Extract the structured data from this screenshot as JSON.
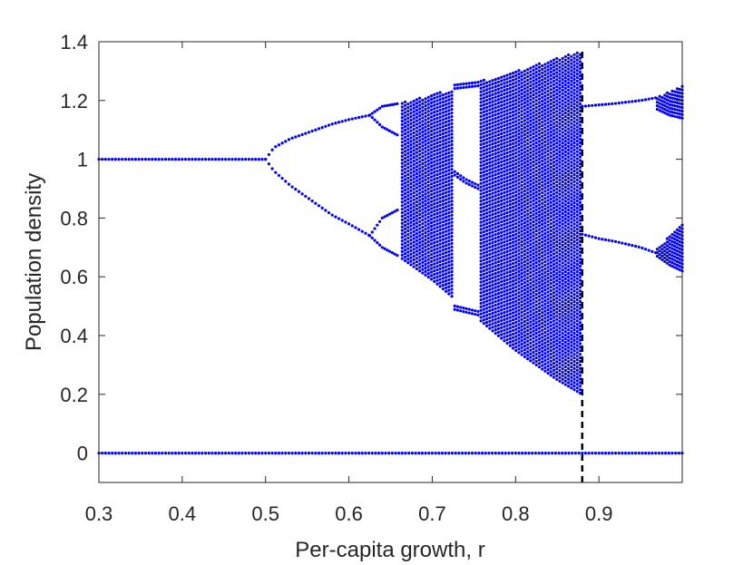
{
  "chart_data": {
    "type": "scatter",
    "title": "",
    "xlabel": "Per-capita growth, r",
    "ylabel": "Population density",
    "xlim": [
      0.3,
      1.0
    ],
    "ylim": [
      -0.1,
      1.4
    ],
    "xticks": [
      0.3,
      0.4,
      0.5,
      0.6,
      0.7,
      0.8,
      0.9
    ],
    "xtick_labels": [
      "0.3",
      "0.4",
      "0.5",
      "0.6",
      "0.7",
      "0.8",
      "0.9"
    ],
    "yticks": [
      0,
      0.2,
      0.4,
      0.6,
      0.8,
      1.0,
      1.2,
      1.4
    ],
    "ytick_labels": [
      "0",
      "0.2",
      "0.4",
      "0.6",
      "0.8",
      "1",
      "1.2",
      "1.4"
    ],
    "grid": false,
    "marker_color": "#0000ff",
    "reference_line": {
      "x": 0.88,
      "y_range": [
        -0.1,
        1.37
      ],
      "style": "dashed",
      "color": "#000000"
    },
    "series": [
      {
        "role": "extinction-equilibrium",
        "points": [
          [
            0.3,
            0
          ],
          [
            0.35,
            0
          ],
          [
            0.4,
            0
          ],
          [
            0.45,
            0
          ],
          [
            0.5,
            0
          ],
          [
            0.55,
            0
          ],
          [
            0.6,
            0
          ],
          [
            0.65,
            0
          ],
          [
            0.7,
            0
          ],
          [
            0.75,
            0
          ],
          [
            0.8,
            0
          ],
          [
            0.85,
            0
          ],
          [
            0.88,
            0
          ],
          [
            0.9,
            0
          ],
          [
            0.95,
            0
          ],
          [
            1.0,
            0
          ]
        ]
      },
      {
        "role": "stable-fixed-point",
        "points": [
          [
            0.3,
            1.0
          ],
          [
            0.35,
            1.0
          ],
          [
            0.4,
            1.0
          ],
          [
            0.45,
            1.0
          ],
          [
            0.5,
            1.0
          ]
        ]
      },
      {
        "role": "period-2-upper",
        "points": [
          [
            0.5,
            1.0
          ],
          [
            0.51,
            1.04
          ],
          [
            0.53,
            1.07
          ],
          [
            0.55,
            1.09
          ],
          [
            0.58,
            1.12
          ],
          [
            0.6,
            1.135
          ],
          [
            0.625,
            1.15
          ]
        ]
      },
      {
        "role": "period-2-lower",
        "points": [
          [
            0.5,
            1.0
          ],
          [
            0.51,
            0.96
          ],
          [
            0.53,
            0.91
          ],
          [
            0.55,
            0.87
          ],
          [
            0.58,
            0.81
          ],
          [
            0.6,
            0.78
          ],
          [
            0.625,
            0.74
          ]
        ]
      },
      {
        "role": "period-4-branches",
        "points": [
          [
            0.625,
            1.15
          ],
          [
            0.64,
            1.18
          ],
          [
            0.66,
            1.19
          ],
          [
            0.625,
            1.15
          ],
          [
            0.64,
            1.11
          ],
          [
            0.66,
            1.08
          ],
          [
            0.625,
            0.74
          ],
          [
            0.64,
            0.8
          ],
          [
            0.66,
            0.83
          ],
          [
            0.625,
            0.74
          ],
          [
            0.64,
            0.7
          ],
          [
            0.66,
            0.67
          ]
        ]
      },
      {
        "role": "chaotic-band-bounds",
        "points": [
          [
            0.66,
            1.19
          ],
          [
            0.7,
            1.22
          ],
          [
            0.75,
            1.26
          ],
          [
            0.8,
            1.3
          ],
          [
            0.85,
            1.345
          ],
          [
            0.88,
            1.37
          ],
          [
            0.66,
            0.67
          ],
          [
            0.7,
            0.59
          ],
          [
            0.75,
            0.47
          ],
          [
            0.8,
            0.35
          ],
          [
            0.85,
            0.25
          ],
          [
            0.88,
            0.2
          ]
        ]
      },
      {
        "role": "period-3-window",
        "points": [
          [
            0.725,
            1.24
          ],
          [
            0.74,
            1.245
          ],
          [
            0.755,
            1.25
          ],
          [
            0.725,
            0.95
          ],
          [
            0.74,
            0.92
          ],
          [
            0.755,
            0.9
          ],
          [
            0.725,
            0.49
          ],
          [
            0.74,
            0.48
          ],
          [
            0.755,
            0.47
          ]
        ]
      },
      {
        "role": "post-crisis-period-2-upper",
        "points": [
          [
            0.88,
            1.18
          ],
          [
            0.9,
            1.185
          ],
          [
            0.92,
            1.19
          ],
          [
            0.95,
            1.2
          ],
          [
            0.97,
            1.21
          ]
        ]
      },
      {
        "role": "post-crisis-period-2-lower",
        "points": [
          [
            0.88,
            0.745
          ],
          [
            0.9,
            0.73
          ],
          [
            0.92,
            0.72
          ],
          [
            0.95,
            0.7
          ],
          [
            0.97,
            0.68
          ]
        ]
      },
      {
        "role": "post-crisis-bands",
        "points": [
          [
            0.97,
            1.21
          ],
          [
            0.985,
            1.23
          ],
          [
            1.0,
            1.25
          ],
          [
            0.97,
            1.17
          ],
          [
            0.985,
            1.15
          ],
          [
            1.0,
            1.14
          ],
          [
            0.97,
            0.7
          ],
          [
            0.985,
            0.74
          ],
          [
            1.0,
            0.78
          ],
          [
            0.97,
            0.67
          ],
          [
            0.985,
            0.64
          ],
          [
            1.0,
            0.62
          ]
        ]
      }
    ]
  }
}
